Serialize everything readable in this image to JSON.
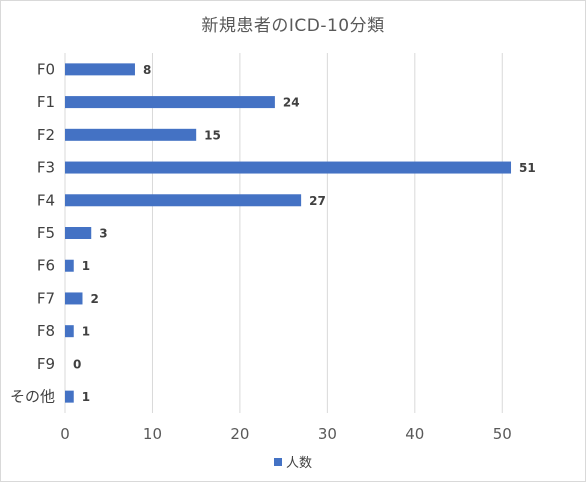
{
  "chart_data": {
    "type": "bar",
    "orientation": "horizontal",
    "title": "新規患者のICD-10分類",
    "categories": [
      "F0",
      "F1",
      "F2",
      "F3",
      "F4",
      "F5",
      "F6",
      "F7",
      "F8",
      "F9",
      "その他"
    ],
    "series": [
      {
        "name": "人数",
        "values": [
          8,
          24,
          15,
          51,
          27,
          3,
          1,
          2,
          1,
          0,
          1
        ]
      }
    ],
    "xlim": [
      0,
      55
    ],
    "xticks": [
      0,
      10,
      20,
      30,
      40,
      50
    ],
    "grid": true,
    "data_labels": true,
    "legend_position": "bottom",
    "bar_color": "#4472c4"
  }
}
